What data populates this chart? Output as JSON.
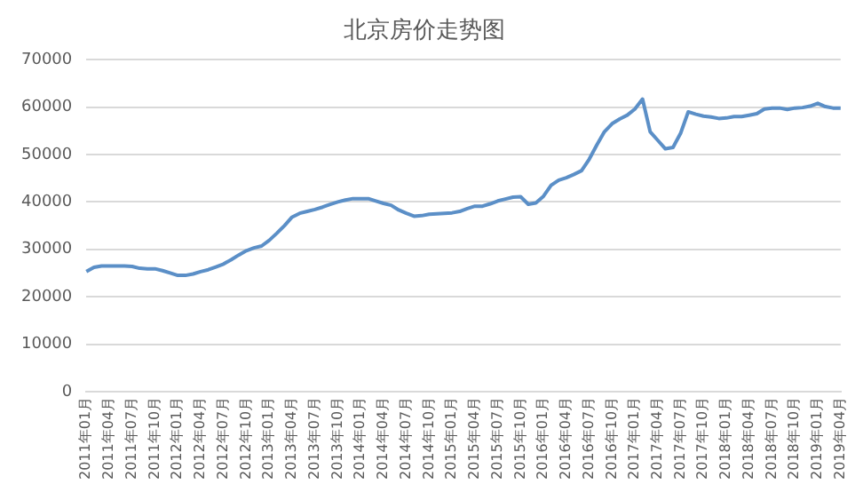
{
  "chart_data": {
    "type": "line",
    "title": "北京房价走势图",
    "categories": [
      "2011年01月",
      null,
      null,
      "2011年04月",
      null,
      null,
      "2011年07月",
      null,
      null,
      "2011年10月",
      null,
      null,
      "2012年01月",
      null,
      null,
      "2012年04月",
      null,
      null,
      "2012年07月",
      null,
      null,
      "2012年10月",
      null,
      null,
      "2013年01月",
      null,
      null,
      "2013年04月",
      null,
      null,
      "2013年07月",
      null,
      null,
      "2013年10月",
      null,
      null,
      "2014年01月",
      null,
      null,
      "2014年04月",
      null,
      null,
      "2014年07月",
      null,
      null,
      "2014年10月",
      null,
      null,
      "2015年01月",
      null,
      null,
      "2015年04月",
      null,
      null,
      "2015年07月",
      null,
      null,
      "2015年10月",
      null,
      null,
      "2016年01月",
      null,
      null,
      "2016年04月",
      null,
      null,
      "2016年07月",
      null,
      null,
      "2016年10月",
      null,
      null,
      "2017年01月",
      null,
      null,
      "2017年04月",
      null,
      null,
      "2017年07月",
      null,
      null,
      "2017年10月",
      null,
      null,
      "2018年01月",
      null,
      null,
      "2018年04月",
      null,
      null,
      "2018年07月",
      null,
      null,
      "2018年10月",
      null,
      null,
      "2019年01月",
      null,
      null,
      "2019年04月"
    ],
    "series": [
      {
        "color": "#5b8fc7",
        "values": [
          25300,
          26200,
          26500,
          26500,
          26500,
          26500,
          26400,
          26000,
          25900,
          25900,
          25500,
          25000,
          24500,
          24500,
          24800,
          25300,
          25700,
          26300,
          26900,
          27800,
          28800,
          29700,
          30300,
          30700,
          31900,
          33400,
          35000,
          36800,
          37600,
          38000,
          38400,
          38900,
          39500,
          40000,
          40400,
          40700,
          40700,
          40700,
          40200,
          39700,
          39300,
          38300,
          37600,
          37000,
          37100,
          37400,
          37500,
          37600,
          37700,
          38000,
          38600,
          39100,
          39100,
          39600,
          40200,
          40600,
          41000,
          41100,
          39500,
          39800,
          41200,
          43500,
          44600,
          45100,
          45800,
          46600,
          49000,
          52000,
          54800,
          56500,
          57500,
          58300,
          59600,
          61700,
          54800,
          53000,
          51200,
          51500,
          54500,
          59000,
          58500,
          58100,
          57900,
          57600,
          57700,
          58000,
          58000,
          58300,
          58600,
          59600,
          59800,
          59800,
          59500,
          59800,
          59900,
          60200,
          60800,
          60100,
          59800,
          59800
        ]
      }
    ],
    "ylim": [
      0,
      70000
    ],
    "yticks": [
      0,
      10000,
      20000,
      30000,
      40000,
      50000,
      60000,
      70000
    ],
    "grid": "y",
    "legend": false,
    "marker": "none",
    "line_style": "solid"
  }
}
